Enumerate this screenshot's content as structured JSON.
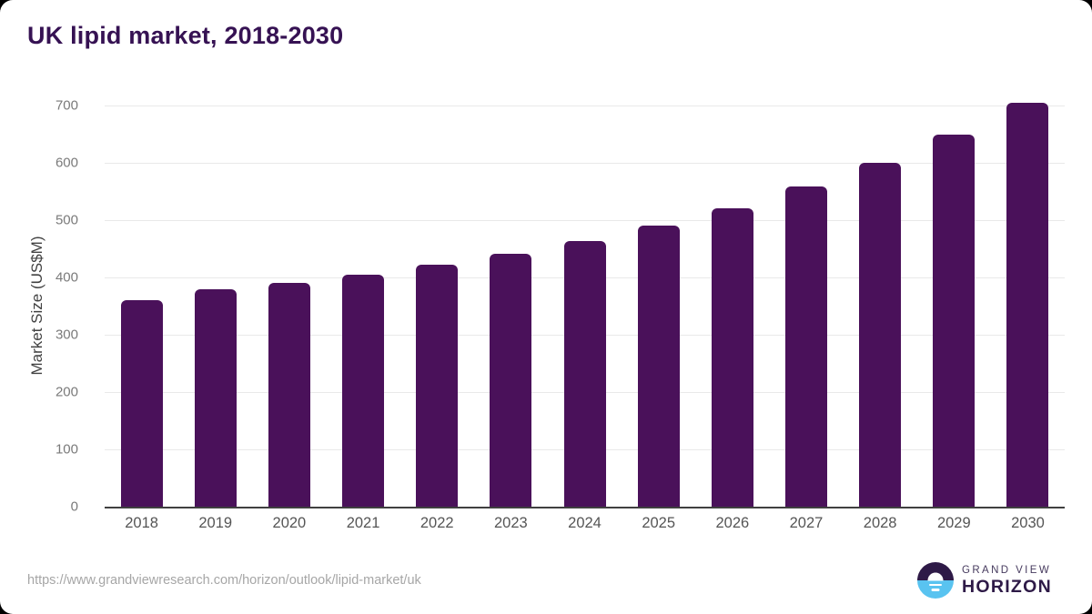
{
  "title": "UK lipid market, 2018-2030",
  "chart_data": {
    "type": "bar",
    "categories": [
      "2018",
      "2019",
      "2020",
      "2021",
      "2022",
      "2023",
      "2024",
      "2025",
      "2026",
      "2027",
      "2028",
      "2029",
      "2030"
    ],
    "values": [
      360,
      380,
      390,
      405,
      422,
      441,
      464,
      490,
      521,
      558,
      600,
      649,
      705
    ],
    "title": "UK lipid market, 2018-2030",
    "xlabel": "",
    "ylabel": "Market Size (US$M)",
    "ylim": [
      0,
      700
    ],
    "ytick_step": 100,
    "grid": "horizontal",
    "legend": "none",
    "bar_color": "#4a115a"
  },
  "footer": {
    "source_url": "https://www.grandviewresearch.com/horizon/outlook/lipid-market/uk",
    "logo_top": "GRAND VIEW",
    "logo_bottom": "HORIZON"
  },
  "colors": {
    "bar": "#4a115a",
    "title_text": "#361253",
    "axis_line": "#404040",
    "gridline": "#e9e9e9",
    "y_tick_text": "#7a7a7a",
    "x_tick_text": "#555555",
    "url_text": "#a6a6a6",
    "logo_dark_purple": "#2e1a47",
    "logo_blue": "#59c3f0"
  }
}
